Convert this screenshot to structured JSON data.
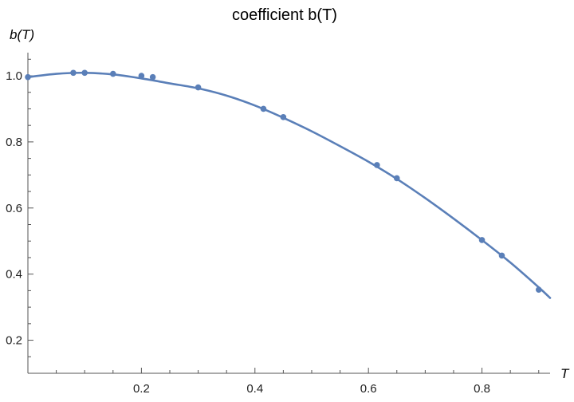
{
  "chart_data": {
    "type": "line",
    "title": "coefficient b(T)",
    "xlabel": "T",
    "ylabel": "b(T)",
    "xlim": [
      0,
      0.92
    ],
    "ylim": [
      0.1,
      1.07
    ],
    "x_ticks": [
      0.2,
      0.4,
      0.6,
      0.8
    ],
    "x_tick_labels": [
      "0.2",
      "0.4",
      "0.6",
      "0.8"
    ],
    "x_minor_step": 0.05,
    "y_ticks": [
      0.2,
      0.4,
      0.6,
      0.8,
      1.0
    ],
    "y_tick_labels": [
      "0.2",
      "0.4",
      "0.6",
      "0.8",
      "1.0"
    ],
    "y_minor_step": 0.05,
    "grid": false,
    "legend": "none",
    "color": "#5a7fb8",
    "series": [
      {
        "kind": "curve",
        "x": [
          0.0,
          0.05,
          0.1,
          0.15,
          0.2,
          0.25,
          0.3,
          0.35,
          0.4,
          0.45,
          0.5,
          0.55,
          0.6,
          0.65,
          0.7,
          0.75,
          0.8,
          0.85,
          0.9,
          0.92
        ],
        "y": [
          0.996,
          1.006,
          1.009,
          1.004,
          0.992,
          0.977,
          0.962,
          0.94,
          0.91,
          0.873,
          0.832,
          0.787,
          0.74,
          0.688,
          0.63,
          0.568,
          0.503,
          0.435,
          0.36,
          0.328
        ]
      },
      {
        "kind": "points",
        "x": [
          0.0,
          0.08,
          0.1,
          0.15,
          0.2,
          0.22,
          0.3,
          0.415,
          0.45,
          0.615,
          0.65,
          0.8,
          0.835,
          0.9
        ],
        "y": [
          0.996,
          1.009,
          1.009,
          1.006,
          1.0,
          0.996,
          0.965,
          0.9,
          0.875,
          0.73,
          0.69,
          0.503,
          0.456,
          0.353
        ]
      }
    ]
  }
}
